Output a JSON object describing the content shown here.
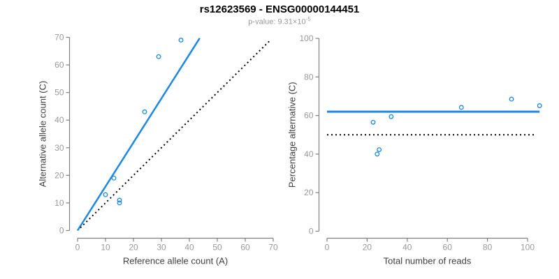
{
  "header": {
    "title": "rs12623569 - ENSG00000144451",
    "subtitle_prefix": "p-value: 9.31×10",
    "subtitle_exponent": "-5"
  },
  "colors": {
    "accent_blue": "#1E88E5",
    "reference_black": "#000000",
    "axis_gray": "#808080",
    "tick_label_gray": "#999999",
    "axis_title_dark": "#404040"
  },
  "chart_data": [
    {
      "type": "scatter",
      "xlabel": "Reference allele count (A)",
      "ylabel": "Alternative allele count (C)",
      "xlim": [
        0,
        70
      ],
      "ylim": [
        0,
        70
      ],
      "xticks": [
        0,
        10,
        20,
        30,
        40,
        50,
        60,
        70
      ],
      "yticks": [
        0,
        10,
        20,
        30,
        40,
        50,
        60,
        70
      ],
      "grid": false,
      "points": [
        [
          10,
          13
        ],
        [
          13,
          19
        ],
        [
          15,
          10
        ],
        [
          15,
          11
        ],
        [
          24,
          43
        ],
        [
          29,
          63
        ],
        [
          37,
          69
        ]
      ],
      "lines": [
        {
          "name": "fit-line",
          "x1": 0,
          "y1": 0,
          "x2": 43.7,
          "y2": 69.7,
          "style": "solid",
          "color": "#1E88E5",
          "width": 2.5
        },
        {
          "name": "identity-line",
          "x1": 1,
          "y1": 1,
          "x2": 69,
          "y2": 69,
          "style": "dotted",
          "color": "#000000",
          "width": 2
        }
      ]
    },
    {
      "type": "scatter",
      "xlabel": "Total number of reads",
      "ylabel": "Percentage alternative (C)",
      "xlim": [
        0,
        107
      ],
      "ylim": [
        0,
        100
      ],
      "xticks": [
        0,
        20,
        40,
        60,
        80,
        100
      ],
      "yticks": [
        0,
        20,
        40,
        60,
        80,
        100
      ],
      "grid": false,
      "points": [
        [
          23,
          56.5
        ],
        [
          25,
          40
        ],
        [
          26,
          42.3
        ],
        [
          32,
          59.4
        ],
        [
          67,
          64.2
        ],
        [
          92,
          68.5
        ],
        [
          106,
          65.1
        ]
      ],
      "lines": [
        {
          "name": "fit-line",
          "x1": 0,
          "y1": 62,
          "x2": 106,
          "y2": 62,
          "style": "solid",
          "color": "#1E88E5",
          "width": 3
        },
        {
          "name": "reference-line",
          "x1": 0,
          "y1": 50,
          "x2": 104,
          "y2": 50,
          "style": "dotted",
          "color": "#000000",
          "width": 2
        }
      ]
    }
  ]
}
